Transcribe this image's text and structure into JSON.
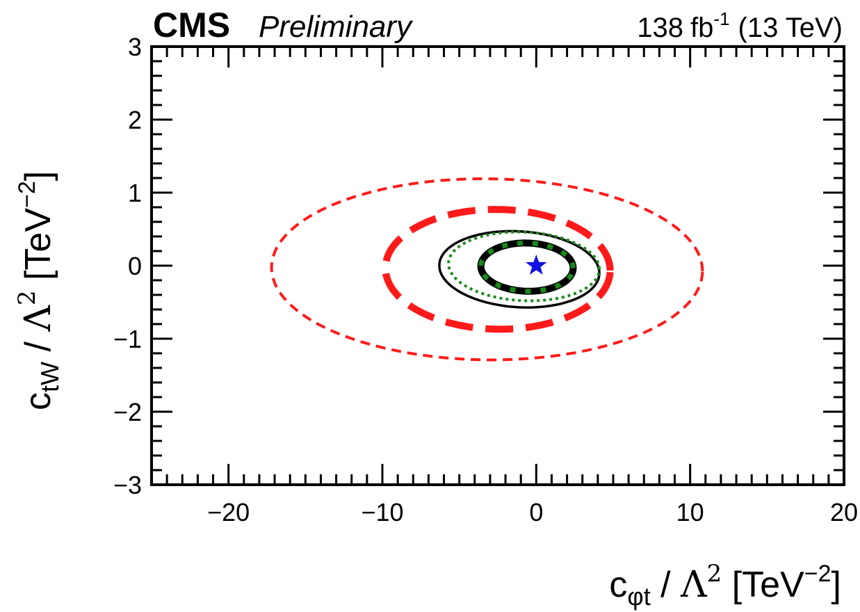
{
  "header": {
    "experiment": "CMS",
    "status": "Preliminary",
    "lumi_value": "138",
    "lumi_unit": "fb",
    "lumi_exp": "-1",
    "energy": "(13 TeV)"
  },
  "chart_data": {
    "type": "contour",
    "title": "",
    "xlabel": {
      "symbol": "c",
      "subscript": "φt",
      "divider": " / ",
      "lambda": "Λ",
      "lambda_exp": "2",
      "unit": " [TeV",
      "unit_exp": "−2",
      "unit_close": "]"
    },
    "ylabel": {
      "symbol": "c",
      "subscript": "tW",
      "divider": " / ",
      "lambda": "Λ",
      "lambda_exp": "2",
      "unit": " [TeV",
      "unit_exp": "−2",
      "unit_close": "]"
    },
    "xlim": [
      -25,
      20
    ],
    "ylim": [
      -3,
      3
    ],
    "x_ticks": [
      -20,
      -10,
      0,
      10,
      20
    ],
    "x_tick_labels": [
      "−20",
      "−10",
      "0",
      "10",
      "20"
    ],
    "y_ticks": [
      -3,
      -2,
      -1,
      0,
      1,
      2,
      3
    ],
    "y_tick_labels": [
      "−3",
      "−2",
      "−1",
      "0",
      "1",
      "2",
      "3"
    ],
    "grid": false,
    "best_fit": {
      "x": 0.0,
      "y": 0.0,
      "marker": "star",
      "color": "#1010e0"
    },
    "contours": [
      {
        "id": "red-outer",
        "color": "#ff1a1a",
        "style": "dashed-thin",
        "cx": -3.2,
        "cy": -0.05,
        "rx": 14.0,
        "ry": 1.24,
        "tilt": 0.02
      },
      {
        "id": "red-inner",
        "color": "#ff1a1a",
        "style": "dashed-thick",
        "cx": -2.5,
        "cy": -0.05,
        "rx": 7.3,
        "ry": 0.82,
        "tilt": 0.02
      },
      {
        "id": "black-outer",
        "color": "#000000",
        "style": "solid-thin",
        "cx": -1.1,
        "cy": -0.05,
        "rx": 5.2,
        "ry": 0.52,
        "tilt": 0.1
      },
      {
        "id": "green-outer",
        "color": "#1a8a1a",
        "style": "dotted-thin",
        "cx": -0.8,
        "cy": -0.01,
        "rx": 4.9,
        "ry": 0.47,
        "tilt": 0.08
      },
      {
        "id": "black-inner",
        "color": "#000000",
        "style": "solid-thick",
        "cx": -0.6,
        "cy": -0.02,
        "rx": 3.0,
        "ry": 0.33,
        "tilt": 0.04
      },
      {
        "id": "green-inner",
        "color": "#1a8a1a",
        "style": "dotted-thick",
        "cx": -0.6,
        "cy": -0.02,
        "rx": 3.0,
        "ry": 0.33,
        "tilt": 0.04
      }
    ]
  }
}
